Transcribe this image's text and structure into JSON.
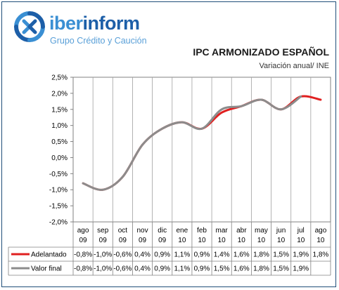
{
  "logo": {
    "name_part1": "iber",
    "name_part2": "inform",
    "tagline": "Grupo Crédito y Caución",
    "colors": {
      "light": "#3a8fd3",
      "dark": "#1d5fa8"
    }
  },
  "chart_data": {
    "type": "line",
    "title": "IPC ARMONIZADO ESPAÑOL",
    "subtitle": "Variación anual/ INE",
    "categories": [
      [
        "ago",
        "09"
      ],
      [
        "sep",
        "09"
      ],
      [
        "oct",
        "09"
      ],
      [
        "nov",
        "09"
      ],
      [
        "dic",
        "09"
      ],
      [
        "ene",
        "10"
      ],
      [
        "feb",
        "10"
      ],
      [
        "mar",
        "10"
      ],
      [
        "abr",
        "10"
      ],
      [
        "may",
        "10"
      ],
      [
        "jun",
        "10"
      ],
      [
        "jul",
        "10"
      ],
      [
        "ago",
        "10"
      ]
    ],
    "ylim": [
      -2.0,
      2.5
    ],
    "yticks": [
      -2.0,
      -1.5,
      -1.0,
      -0.5,
      0.0,
      0.5,
      1.0,
      1.5,
      2.0,
      2.5
    ],
    "ytick_labels": [
      "-2,0%",
      "-1,5%",
      "-1,0%",
      "-0,5%",
      "0,0%",
      "0,5%",
      "1,0%",
      "1,5%",
      "2,0%",
      "2,5%"
    ],
    "grid": "vertical",
    "series": [
      {
        "name": "Adelantado",
        "color": "#e02020",
        "values": [
          -0.8,
          -1.0,
          -0.6,
          0.4,
          0.9,
          1.1,
          0.9,
          1.4,
          1.6,
          1.8,
          1.5,
          1.9,
          1.8
        ],
        "labels": [
          "-0,8%",
          "-1,0%",
          "-0,6%",
          "0,4%",
          "0,9%",
          "1,1%",
          "0,9%",
          "1,4%",
          "1,6%",
          "1,8%",
          "1,5%",
          "1,9%",
          "1,8%"
        ]
      },
      {
        "name": "Valor final",
        "color": "#8c8c8c",
        "values": [
          -0.8,
          -1.0,
          -0.6,
          0.4,
          0.9,
          1.1,
          0.9,
          1.5,
          1.6,
          1.8,
          1.5,
          1.9,
          null
        ],
        "labels": [
          "-0,8%",
          "-1,0%",
          "-0,6%",
          "0,4%",
          "0,9%",
          "1,1%",
          "0,9%",
          "1,5%",
          "1,6%",
          "1,8%",
          "1,5%",
          "1,9%",
          ""
        ]
      }
    ]
  }
}
